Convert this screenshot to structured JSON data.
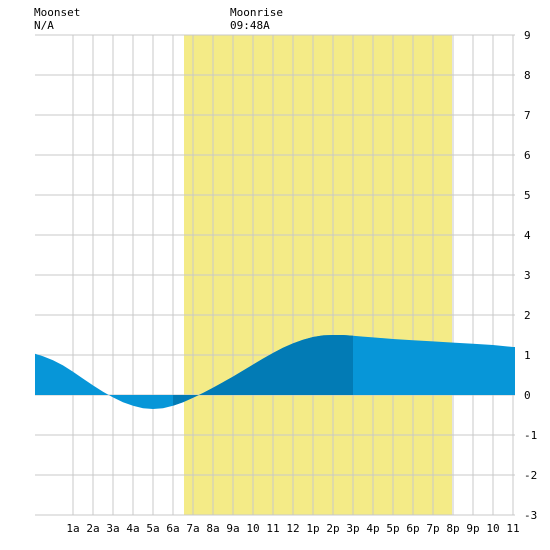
{
  "header": {
    "moonset_label": "Moonset",
    "moonset_value": "N/A",
    "moonrise_label": "Moonrise",
    "moonrise_value": "09:48A"
  },
  "chart_data": {
    "type": "area",
    "title": "",
    "xlabel": "",
    "ylabel": "",
    "x_range_hours": [
      -0.9,
      23.1
    ],
    "ylim": [
      -3,
      9
    ],
    "y_ticks": [
      9,
      8,
      7,
      6,
      5,
      4,
      3,
      2,
      1,
      0,
      -1,
      -2,
      -3
    ],
    "y_axis_side": "right",
    "grid": true,
    "x_ticks": [
      {
        "hour": 1,
        "label": "1a"
      },
      {
        "hour": 2,
        "label": "2a"
      },
      {
        "hour": 3,
        "label": "3a"
      },
      {
        "hour": 4,
        "label": "4a"
      },
      {
        "hour": 5,
        "label": "5a"
      },
      {
        "hour": 6,
        "label": "6a"
      },
      {
        "hour": 7,
        "label": "7a"
      },
      {
        "hour": 8,
        "label": "8a"
      },
      {
        "hour": 9,
        "label": "9a"
      },
      {
        "hour": 10,
        "label": "10"
      },
      {
        "hour": 11,
        "label": "11"
      },
      {
        "hour": 12,
        "label": "12"
      },
      {
        "hour": 13,
        "label": "1p"
      },
      {
        "hour": 14,
        "label": "2p"
      },
      {
        "hour": 15,
        "label": "3p"
      },
      {
        "hour": 16,
        "label": "4p"
      },
      {
        "hour": 17,
        "label": "5p"
      },
      {
        "hour": 18,
        "label": "6p"
      },
      {
        "hour": 19,
        "label": "7p"
      },
      {
        "hour": 20,
        "label": "8p"
      },
      {
        "hour": 21,
        "label": "9p"
      },
      {
        "hour": 22,
        "label": "10"
      },
      {
        "hour": 23,
        "label": "11"
      }
    ],
    "daylight_hours": [
      6.55,
      19.95
    ],
    "highlight_hours": [
      5.9,
      15.1
    ],
    "tide_series": {
      "x": [
        -0.9,
        -0.5,
        0,
        0.5,
        1,
        1.5,
        2,
        2.5,
        3,
        3.5,
        4,
        4.5,
        5,
        5.5,
        6,
        6.5,
        7,
        7.5,
        8,
        8.5,
        9,
        9.5,
        10,
        10.5,
        11,
        11.5,
        12,
        12.5,
        13,
        13.5,
        14,
        14.5,
        15,
        15.5,
        16,
        17,
        18,
        19,
        20,
        21,
        22,
        23,
        23.1
      ],
      "y": [
        1.03,
        0.97,
        0.87,
        0.74,
        0.58,
        0.41,
        0.24,
        0.08,
        -0.06,
        -0.18,
        -0.27,
        -0.33,
        -0.35,
        -0.33,
        -0.27,
        -0.18,
        -0.07,
        0.05,
        0.18,
        0.32,
        0.46,
        0.61,
        0.76,
        0.91,
        1.05,
        1.18,
        1.29,
        1.38,
        1.45,
        1.49,
        1.5,
        1.5,
        1.48,
        1.46,
        1.44,
        1.4,
        1.37,
        1.34,
        1.31,
        1.28,
        1.25,
        1.2,
        1.2
      ]
    },
    "colors": {
      "tide": "#0796d8",
      "tide_highlight": "#027bb5",
      "daylight": "#f4eb87",
      "grid": "#c8c8c8",
      "plot_background": "#ffffff"
    }
  }
}
